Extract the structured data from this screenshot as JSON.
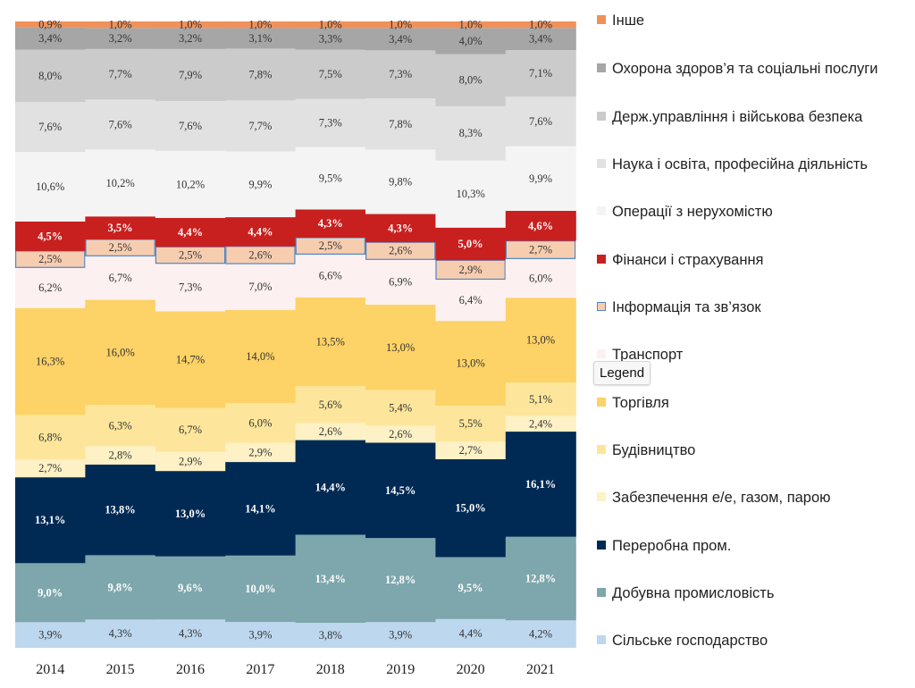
{
  "chart_data": {
    "type": "bar",
    "stacked": true,
    "normalized": true,
    "categories": [
      "2014",
      "2015",
      "2016",
      "2017",
      "2018",
      "2019",
      "2020",
      "2021"
    ],
    "series": [
      {
        "name": "Сільське господарство",
        "color": "#bdd7ee",
        "text_color": "#333333",
        "values": [
          3.9,
          4.3,
          4.3,
          3.9,
          3.8,
          3.9,
          4.4,
          4.2
        ],
        "labels": [
          "3,9%",
          "4,3%",
          "4,3%",
          "3,9%",
          "3,8%",
          "3,9%",
          "4,4%",
          "4,2%"
        ]
      },
      {
        "name": "Добувна промисловість",
        "color": "#7ea6ad",
        "text_color": "#ffffff",
        "values": [
          9.0,
          9.8,
          9.6,
          10.0,
          13.4,
          12.8,
          9.5,
          12.8
        ],
        "labels": [
          "9,0%",
          "9,8%",
          "9,6%",
          "10,0%",
          "13,4%",
          "12,8%",
          "9,5%",
          "12,8%"
        ]
      },
      {
        "name": "Переробна пром.",
        "color": "#002a54",
        "text_color": "#ffffff",
        "values": [
          13.1,
          13.8,
          13.0,
          14.1,
          14.4,
          14.5,
          15.0,
          16.1
        ],
        "labels": [
          "13,1%",
          "13,8%",
          "13,0%",
          "14,1%",
          "14,4%",
          "14,5%",
          "15,0%",
          "16,1%"
        ]
      },
      {
        "name": "Забезпечення е/е, газом, парою",
        "color": "#fdf1c5",
        "text_color": "#333333",
        "values": [
          2.7,
          2.8,
          2.9,
          2.9,
          2.6,
          2.6,
          2.7,
          2.4
        ],
        "labels": [
          "2,7%",
          "2,8%",
          "2,9%",
          "2,9%",
          "2,6%",
          "2,6%",
          "2,7%",
          "2,4%"
        ]
      },
      {
        "name": "Будівництво",
        "color": "#fde69b",
        "text_color": "#333333",
        "values": [
          6.8,
          6.3,
          6.7,
          6.0,
          5.6,
          5.4,
          5.5,
          5.1
        ],
        "labels": [
          "6,8%",
          "6,3%",
          "6,7%",
          "6,0%",
          "5,6%",
          "5,4%",
          "5,5%",
          "5,1%"
        ]
      },
      {
        "name": "Торгівля",
        "color": "#fdd266",
        "text_color": "#333333",
        "values": [
          16.3,
          16.0,
          14.7,
          14.0,
          13.5,
          13.0,
          13.0,
          13.0
        ],
        "labels": [
          "16,3%",
          "16,0%",
          "14,7%",
          "14,0%",
          "13,5%",
          "13,0%",
          "13,0%",
          "13,0%"
        ]
      },
      {
        "name": "Транспорт",
        "color": "#fcf0f0",
        "text_color": "#333333",
        "values": [
          6.2,
          6.7,
          7.3,
          7.0,
          6.6,
          6.9,
          6.4,
          6.0
        ],
        "labels": [
          "6,2%",
          "6,7%",
          "7,3%",
          "7,0%",
          "6,6%",
          "6,9%",
          "6,4%",
          "6,0%"
        ]
      },
      {
        "name": "Інформація та зв’язок",
        "color": "#f7cdb0",
        "text_color": "#333333",
        "stroke": "#4f86c6",
        "values": [
          2.5,
          2.5,
          2.5,
          2.6,
          2.5,
          2.6,
          2.9,
          2.7
        ],
        "labels": [
          "2,5%",
          "2,5%",
          "2,5%",
          "2,6%",
          "2,5%",
          "2,6%",
          "2,9%",
          "2,7%"
        ]
      },
      {
        "name": "Фінанси і страхування",
        "color": "#c8201f",
        "text_color": "#ffffff",
        "values": [
          4.5,
          3.5,
          4.4,
          4.4,
          4.3,
          4.3,
          5.0,
          4.6
        ],
        "labels": [
          "4,5%",
          "3,5%",
          "4,4%",
          "4,4%",
          "4,3%",
          "4,3%",
          "5,0%",
          "4,6%"
        ]
      },
      {
        "name": "Операції з нерухомістю",
        "color": "#f4f4f4",
        "text_color": "#333333",
        "values": [
          10.6,
          10.2,
          10.2,
          9.9,
          9.5,
          9.8,
          10.3,
          9.9
        ],
        "labels": [
          "10,6%",
          "10,2%",
          "10,2%",
          "9,9%",
          "9,5%",
          "9,8%",
          "10,3%",
          "9,9%"
        ]
      },
      {
        "name": "Наука і освіта, професійна діяльність",
        "color": "#e1e1e1",
        "text_color": "#333333",
        "values": [
          7.6,
          7.6,
          7.6,
          7.7,
          7.3,
          7.8,
          8.3,
          7.6
        ],
        "labels": [
          "7,6%",
          "7,6%",
          "7,6%",
          "7,7%",
          "7,3%",
          "7,8%",
          "8,3%",
          "7,6%"
        ]
      },
      {
        "name": "Держ.управління і військова безпека",
        "color": "#cbcbcb",
        "text_color": "#333333",
        "values": [
          8.0,
          7.7,
          7.9,
          7.8,
          7.5,
          7.3,
          8.0,
          7.1
        ],
        "labels": [
          "8,0%",
          "7,7%",
          "7,9%",
          "7,8%",
          "7,5%",
          "7,3%",
          "8,0%",
          "7,1%"
        ]
      },
      {
        "name": "Охорона здоров’я та соціальні послуги",
        "color": "#a6a6a6",
        "text_color": "#333333",
        "values": [
          3.4,
          3.2,
          3.2,
          3.1,
          3.3,
          3.4,
          4.0,
          3.4
        ],
        "labels": [
          "3,4%",
          "3,2%",
          "3,2%",
          "3,1%",
          "3,3%",
          "3,4%",
          "4,0%",
          "3,4%"
        ]
      },
      {
        "name": "Інше",
        "color": "#f0915a",
        "text_color": "#333333",
        "values": [
          0.9,
          1.0,
          1.0,
          1.0,
          1.0,
          1.0,
          1.0,
          1.0
        ],
        "labels": [
          "0,9%",
          "1,0%",
          "1,0%",
          "1,0%",
          "1,0%",
          "1,0%",
          "1,0%",
          "1,0%"
        ]
      }
    ],
    "legend_order": [
      "Інше",
      "Охорона здоров’я та соціальні послуги",
      "Держ.управління і військова безпека",
      "Наука і освіта, професійна діяльність",
      "Операції з нерухомістю",
      "Фінанси і страхування",
      "Інформація та зв’язок",
      "Транспорт",
      "Торгівля",
      "Будівництво",
      "Забезпечення е/е, газом, парою",
      "Переробна пром.",
      "Добувна промисловість",
      "Сільське господарство"
    ],
    "legend_placement": "right",
    "grid": false
  },
  "tooltip": {
    "text": "Legend"
  }
}
